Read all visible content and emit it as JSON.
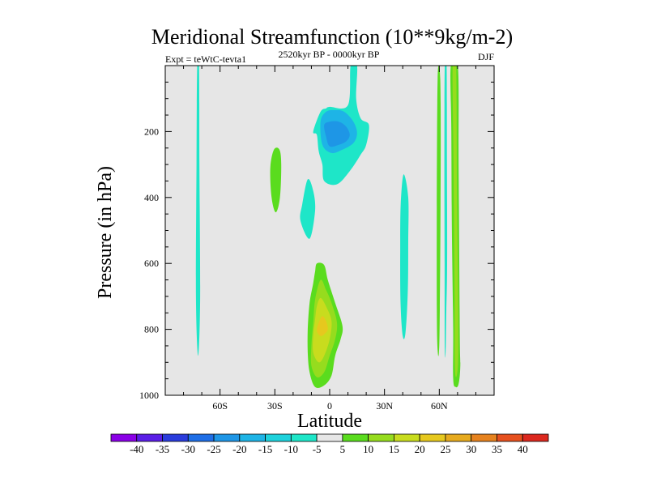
{
  "chart_data": {
    "type": "contour",
    "title": "Meridional Streamfunction (10**9kg/m-2)",
    "subtitle_left": "Expt = teWtC-tevta1",
    "subtitle_center": "2520kyr BP - 0000kyr BP",
    "subtitle_right": "DJF",
    "xlabel": "Latitude",
    "ylabel": "Pressure (in hPa)",
    "xlim": [
      -90,
      90
    ],
    "ylim": [
      0,
      1000
    ],
    "y_reversed": true,
    "x_ticks": [
      {
        "value": -60,
        "label": "60S"
      },
      {
        "value": -30,
        "label": "30S"
      },
      {
        "value": 0,
        "label": "0"
      },
      {
        "value": 30,
        "label": "30N"
      },
      {
        "value": 60,
        "label": "60N"
      }
    ],
    "y_ticks": [
      {
        "value": 200,
        "label": "200"
      },
      {
        "value": 400,
        "label": "400"
      },
      {
        "value": 600,
        "label": "600"
      },
      {
        "value": 800,
        "label": "800"
      },
      {
        "value": 1000,
        "label": "1000"
      }
    ],
    "colorbar": {
      "labels": [
        "-40",
        "-35",
        "-30",
        "-25",
        "-20",
        "-15",
        "-10",
        "-5",
        "5",
        "10",
        "15",
        "20",
        "25",
        "30",
        "35",
        "40"
      ],
      "colors": [
        "#8a00e6",
        "#5a1ee6",
        "#2a3cdc",
        "#1e6ee6",
        "#1e96e6",
        "#1eb4e6",
        "#1ed2dc",
        "#1ee6c8",
        "#e6e6e6",
        "#5adc1e",
        "#96dc1e",
        "#c8dc1e",
        "#e6c81e",
        "#e6aa1e",
        "#e6821e",
        "#e6501e",
        "#dc281e"
      ]
    },
    "regions": [
      {
        "level": "-10 to -5",
        "color": "#1ee6c8",
        "points": [
          [
            -72.5,
            0
          ],
          [
            -71.5,
            0
          ],
          [
            -71.3,
            300
          ],
          [
            -70.9,
            700
          ],
          [
            -72,
            880
          ],
          [
            -73.2,
            700
          ],
          [
            -72.9,
            300
          ]
        ]
      },
      {
        "level": "5 to 10",
        "color": "#5adc1e",
        "points": [
          [
            -30.5,
            255
          ],
          [
            -27.5,
            255
          ],
          [
            -26.5,
            300
          ],
          [
            -27.2,
            400
          ],
          [
            -29.5,
            445
          ],
          [
            -31.8,
            400
          ],
          [
            -32.5,
            310
          ]
        ]
      },
      {
        "level": "-10 to -5",
        "color": "#1ee6c8",
        "points": [
          [
            -12,
            345
          ],
          [
            -15,
            420
          ],
          [
            -16,
            470
          ],
          [
            -11,
            525
          ],
          [
            -8,
            440
          ],
          [
            -9,
            380
          ]
        ]
      },
      {
        "level": "-10 to -5",
        "color": "#1ee6c8",
        "points": [
          [
            11.5,
            0
          ],
          [
            15,
            0
          ],
          [
            14.5,
            100
          ],
          [
            17,
            160
          ],
          [
            21.5,
            180
          ],
          [
            20,
            240
          ],
          [
            17,
            270
          ],
          [
            11,
            320
          ],
          [
            4,
            360
          ],
          [
            -3,
            350
          ],
          [
            -4,
            300
          ],
          [
            -6,
            260
          ],
          [
            -7,
            210
          ],
          [
            -9,
            200
          ],
          [
            -5,
            140
          ],
          [
            -2,
            130
          ],
          [
            0,
            125
          ],
          [
            10,
            120
          ]
        ]
      },
      {
        "level": "-15 to -10",
        "color": "#1eb4e6",
        "points": [
          [
            -5,
            170
          ],
          [
            -2,
            140
          ],
          [
            3,
            135
          ],
          [
            8,
            140
          ],
          [
            13,
            170
          ],
          [
            15,
            205
          ],
          [
            13,
            235
          ],
          [
            7,
            255
          ],
          [
            1,
            265
          ],
          [
            -4,
            240
          ]
        ]
      },
      {
        "level": "-20 to -15",
        "color": "#1e96e6",
        "points": [
          [
            -3,
            180
          ],
          [
            0,
            170
          ],
          [
            5,
            170
          ],
          [
            9,
            185
          ],
          [
            11,
            210
          ],
          [
            9,
            230
          ],
          [
            5,
            240
          ],
          [
            0,
            245
          ],
          [
            -2,
            215
          ]
        ]
      },
      {
        "level": "5 to 10",
        "color": "#5adc1e",
        "points": [
          [
            -7,
            600
          ],
          [
            -3,
            605
          ],
          [
            -1,
            650
          ],
          [
            3,
            720
          ],
          [
            7,
            790
          ],
          [
            6,
            830
          ],
          [
            3,
            880
          ],
          [
            1,
            940
          ],
          [
            -3,
            970
          ],
          [
            -8,
            975
          ],
          [
            -11,
            930
          ],
          [
            -12,
            870
          ],
          [
            -12,
            800
          ],
          [
            -11,
            720
          ],
          [
            -9,
            660
          ],
          [
            -8,
            625
          ]
        ]
      },
      {
        "level": "10 to 15",
        "color": "#96dc1e",
        "points": [
          [
            -5,
            650
          ],
          [
            -2,
            680
          ],
          [
            1,
            720
          ],
          [
            4,
            780
          ],
          [
            3,
            830
          ],
          [
            0,
            880
          ],
          [
            -3,
            930
          ],
          [
            -7,
            945
          ],
          [
            -10,
            910
          ],
          [
            -10,
            850
          ],
          [
            -9,
            780
          ],
          [
            -8,
            710
          ]
        ]
      },
      {
        "level": "15 to 20",
        "color": "#c8dc1e",
        "points": [
          [
            -5,
            705
          ],
          [
            -2,
            730
          ],
          [
            1,
            775
          ],
          [
            0,
            830
          ],
          [
            -3,
            880
          ],
          [
            -6,
            900
          ],
          [
            -9,
            870
          ],
          [
            -9,
            820
          ],
          [
            -8,
            770
          ],
          [
            -7,
            730
          ]
        ]
      },
      {
        "level": "20 to 25",
        "color": "#e6c81e",
        "points": [
          [
            -4,
            760
          ],
          [
            -2,
            775
          ],
          [
            -1,
            800
          ],
          [
            -3,
            815
          ],
          [
            -5,
            820
          ],
          [
            -7,
            805
          ],
          [
            -6,
            780
          ]
        ]
      },
      {
        "level": "-10 to -5",
        "color": "#1ee6c8",
        "points": [
          [
            40.5,
            330
          ],
          [
            43,
            400
          ],
          [
            43,
            530
          ],
          [
            42.8,
            680
          ],
          [
            41.5,
            810
          ],
          [
            40,
            820
          ],
          [
            38.8,
            720
          ],
          [
            38.6,
            560
          ],
          [
            38.9,
            420
          ]
        ]
      },
      {
        "level": "5 to 10",
        "color": "#5adc1e",
        "points": [
          [
            59.7,
            0
          ],
          [
            60.5,
            40
          ],
          [
            60.8,
            200
          ],
          [
            60.6,
            500
          ],
          [
            60.2,
            780
          ],
          [
            59.8,
            870
          ],
          [
            59.2,
            870
          ],
          [
            58.7,
            780
          ],
          [
            58.6,
            500
          ],
          [
            58.8,
            200
          ],
          [
            59.1,
            40
          ]
        ]
      },
      {
        "level": "-10 to -5",
        "color": "#1ee6c8",
        "points": [
          [
            63,
            0
          ],
          [
            64,
            0
          ],
          [
            64.2,
            300
          ],
          [
            64.3,
            600
          ],
          [
            63.8,
            760
          ],
          [
            63.5,
            865
          ],
          [
            63,
            860
          ],
          [
            62.9,
            600
          ],
          [
            62.8,
            300
          ]
        ]
      },
      {
        "level": "5 to 10",
        "color": "#5adc1e",
        "points": [
          [
            66.3,
            0
          ],
          [
            70.2,
            0
          ],
          [
            70.6,
            300
          ],
          [
            71.2,
            800
          ],
          [
            71.5,
            910
          ],
          [
            70.6,
            965
          ],
          [
            69,
            975
          ],
          [
            67.6,
            950
          ],
          [
            67.6,
            800
          ],
          [
            66.9,
            500
          ],
          [
            66.6,
            200
          ]
        ]
      },
      {
        "level": "10 to 15",
        "color": "#96dc1e",
        "points": [
          [
            67.3,
            0
          ],
          [
            69.2,
            0
          ],
          [
            69.7,
            400
          ],
          [
            70.4,
            760
          ],
          [
            70.3,
            900
          ],
          [
            69.2,
            945
          ],
          [
            68.5,
            900
          ],
          [
            68.4,
            700
          ],
          [
            67.8,
            300
          ]
        ]
      }
    ]
  }
}
